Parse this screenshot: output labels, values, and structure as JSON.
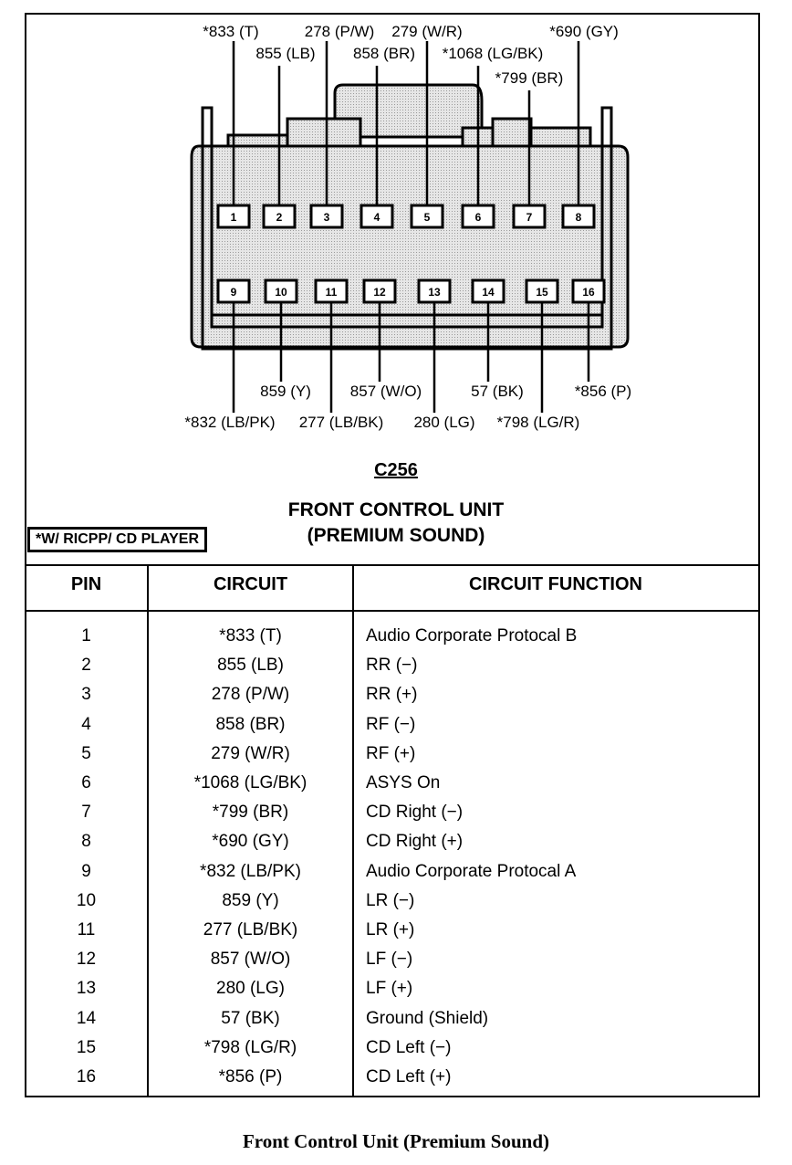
{
  "connector": {
    "id": "C256",
    "title_line1": "FRONT CONTROL UNIT",
    "title_line2": "(PREMIUM SOUND)",
    "note": "*W/ RICPP/ CD PLAYER",
    "wire_labels": {
      "p1": "*833 (T)",
      "p2": "855 (LB)",
      "p3": "278 (P/W)",
      "p4": "858 (BR)",
      "p5": "279 (W/R)",
      "p6": "*1068 (LG/BK)",
      "p7": "*799 (BR)",
      "p8": "*690 (GY)",
      "p9": "*832 (LB/PK)",
      "p10": "859 (Y)",
      "p11": "277 (LB/BK)",
      "p12": "857 (W/O)",
      "p13": "280 (LG)",
      "p14": "57 (BK)",
      "p15": "*798 (LG/R)",
      "p16": "*856 (P)"
    },
    "pins": [
      "1",
      "2",
      "3",
      "4",
      "5",
      "6",
      "7",
      "8",
      "9",
      "10",
      "11",
      "12",
      "13",
      "14",
      "15",
      "16"
    ]
  },
  "table": {
    "headers": [
      "PIN",
      "CIRCUIT",
      "CIRCUIT FUNCTION"
    ],
    "rows": [
      {
        "pin": "1",
        "circuit": "*833 (T)",
        "function": "Audio Corporate Protocal B"
      },
      {
        "pin": "2",
        "circuit": "855 (LB)",
        "function": "RR (−)"
      },
      {
        "pin": "3",
        "circuit": "278 (P/W)",
        "function": "RR (+)"
      },
      {
        "pin": "4",
        "circuit": "858 (BR)",
        "function": "RF (−)"
      },
      {
        "pin": "5",
        "circuit": "279 (W/R)",
        "function": "RF (+)"
      },
      {
        "pin": "6",
        "circuit": "*1068 (LG/BK)",
        "function": "ASYS On"
      },
      {
        "pin": "7",
        "circuit": "*799 (BR)",
        "function": "CD Right (−)"
      },
      {
        "pin": "8",
        "circuit": "*690 (GY)",
        "function": "CD Right (+)"
      },
      {
        "pin": "9",
        "circuit": "*832 (LB/PK)",
        "function": "Audio Corporate Protocal A"
      },
      {
        "pin": "10",
        "circuit": "859 (Y)",
        "function": "LR (−)"
      },
      {
        "pin": "11",
        "circuit": "277 (LB/BK)",
        "function": "LR (+)"
      },
      {
        "pin": "12",
        "circuit": "857 (W/O)",
        "function": "LF (−)"
      },
      {
        "pin": "13",
        "circuit": "280 (LG)",
        "function": "LF (+)"
      },
      {
        "pin": "14",
        "circuit": "57 (BK)",
        "function": "Ground (Shield)"
      },
      {
        "pin": "15",
        "circuit": "*798 (LG/R)",
        "function": "CD Left (−)"
      },
      {
        "pin": "16",
        "circuit": "*856 (P)",
        "function": "CD Left (+)"
      }
    ]
  },
  "caption": "Front Control Unit (Premium Sound)"
}
